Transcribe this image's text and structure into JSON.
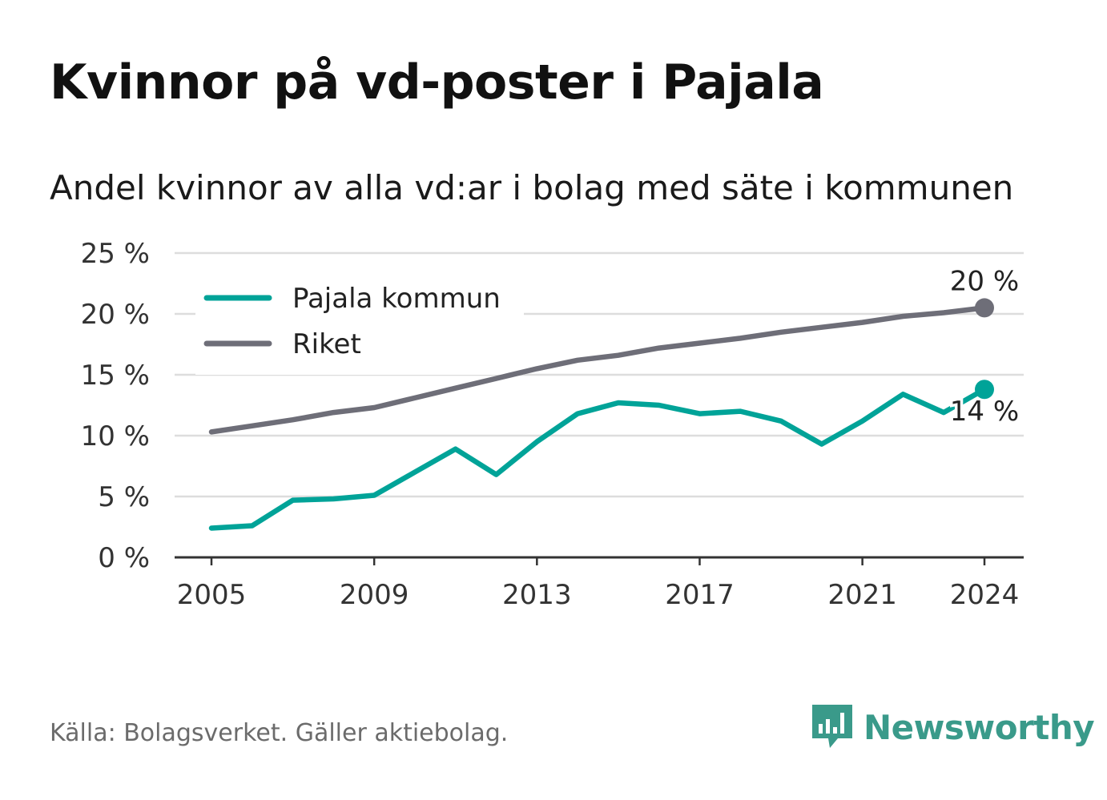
{
  "header": {
    "title": "Kvinnor på vd-poster i Pajala",
    "subtitle": "Andel kvinnor av alla vd:ar i bolag med säte i kommunen"
  },
  "footer": {
    "source": "Källa: Bolagsverket. Gäller aktiebolag.",
    "brand": "Newsworthy"
  },
  "colors": {
    "pajala": "#00a398",
    "riket": "#6e6e78",
    "grid": "#dddddd",
    "axis": "#333333",
    "brand": "#3a9a8a"
  },
  "chart_data": {
    "type": "line",
    "x": [
      2005,
      2006,
      2007,
      2008,
      2009,
      2010,
      2011,
      2012,
      2013,
      2014,
      2015,
      2016,
      2017,
      2018,
      2019,
      2020,
      2021,
      2022,
      2023,
      2024
    ],
    "xticks": [
      "2005",
      "2009",
      "2013",
      "2017",
      "2021",
      "2024"
    ],
    "yticks": [
      "0 %",
      "5 %",
      "10 %",
      "15 %",
      "20 %",
      "25 %"
    ],
    "ylim": [
      0,
      25
    ],
    "grid": true,
    "legend_position": "top-left",
    "series": [
      {
        "name": "Pajala kommun",
        "values": [
          2.4,
          2.6,
          4.7,
          4.8,
          5.1,
          7.0,
          8.9,
          6.8,
          9.5,
          11.8,
          12.7,
          12.5,
          11.8,
          12.0,
          11.2,
          9.3,
          11.2,
          13.4,
          11.9,
          13.8
        ],
        "end_label": "14 %"
      },
      {
        "name": "Riket",
        "values": [
          10.3,
          10.8,
          11.3,
          11.9,
          12.3,
          13.1,
          13.9,
          14.7,
          15.5,
          16.2,
          16.6,
          17.2,
          17.6,
          18.0,
          18.5,
          18.9,
          19.3,
          19.8,
          20.1,
          20.5
        ],
        "end_label": "20 %"
      }
    ]
  }
}
